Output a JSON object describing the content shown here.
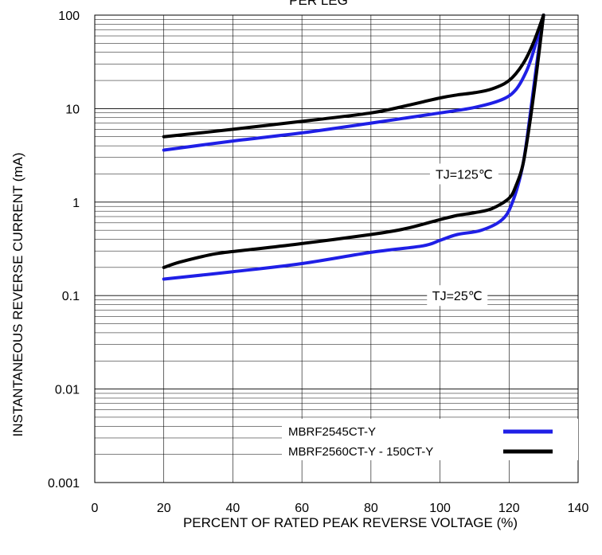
{
  "chart_data": {
    "type": "line",
    "title": "PER LEG",
    "xlabel": "PERCENT OF RATED PEAK REVERSE VOLTAGE (%)",
    "ylabel": "INSTANTANEOUS REVERSE CURRENT (mA)",
    "x_ticks": [
      0,
      20,
      40,
      60,
      80,
      100,
      120,
      140
    ],
    "y_ticks": [
      "0.001",
      "0.01",
      "0.1",
      "1",
      "10",
      "100"
    ],
    "xlim": [
      0,
      140
    ],
    "ylim": [
      0.001,
      100
    ],
    "y_scale": "log",
    "grid": true,
    "legend_position": "bottom-right",
    "annotations": [
      {
        "text": "TJ=125℃",
        "x": 107,
        "y": 2.0
      },
      {
        "text": "TJ=25℃",
        "x": 105,
        "y": 0.1
      }
    ],
    "series": [
      {
        "name": "MBRF2545CT-Y",
        "color": "#1f1fe6",
        "curves": [
          {
            "x": [
              20,
              40,
              60,
              80,
              100,
              110,
              118,
              122,
              125,
              127,
              130
            ],
            "y": [
              3.6,
              4.5,
              5.5,
              7.0,
              9.0,
              10.3,
              12.5,
              16,
              25,
              40,
              100
            ]
          },
          {
            "x": [
              20,
              40,
              60,
              80,
              95,
              100,
              105,
              112,
              118,
              121,
              124,
              126,
              128,
              130
            ],
            "y": [
              0.15,
              0.18,
              0.22,
              0.29,
              0.34,
              0.39,
              0.45,
              0.5,
              0.65,
              1.0,
              2.5,
              8,
              30,
              100
            ]
          }
        ]
      },
      {
        "name": "MBRF2560CT-Y - 150CT-Y",
        "color": "#000000",
        "curves": [
          {
            "x": [
              20,
              40,
              60,
              80,
              90,
              100,
              105,
              110,
              115,
              120,
              124,
              127,
              130
            ],
            "y": [
              5.0,
              6.0,
              7.3,
              9.0,
              10.7,
              13.0,
              14.0,
              14.8,
              16.2,
              20,
              30,
              50,
              100
            ]
          },
          {
            "x": [
              20,
              25,
              35,
              45,
              60,
              80,
              90,
              100,
              105,
              110,
              115,
              120,
              122,
              124,
              126,
              128,
              130
            ],
            "y": [
              0.2,
              0.23,
              0.28,
              0.31,
              0.36,
              0.45,
              0.52,
              0.65,
              0.72,
              0.77,
              0.85,
              1.1,
              1.5,
              2.5,
              7,
              25,
              100
            ]
          }
        ]
      }
    ]
  }
}
